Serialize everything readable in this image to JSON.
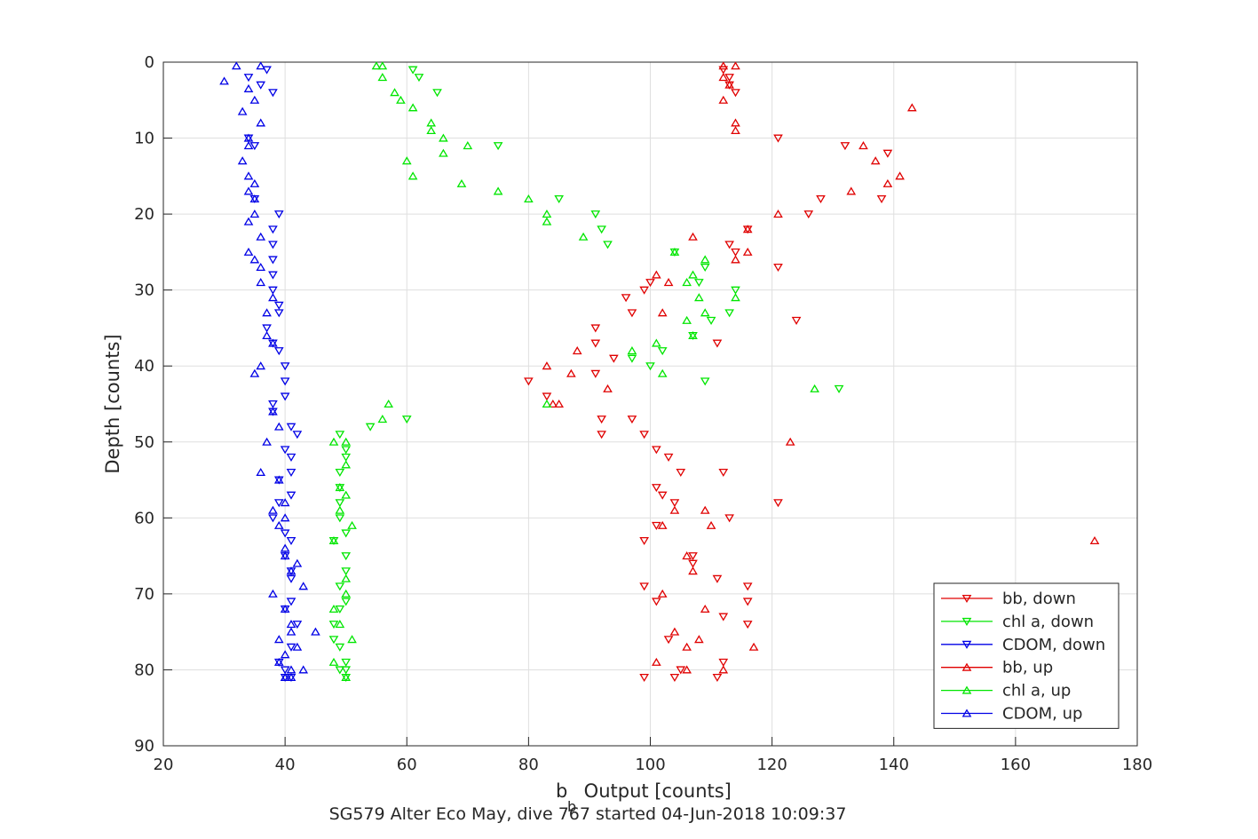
{
  "chart_data": {
    "type": "scatter",
    "xlabel_main": "b",
    "xlabel_sub": "b",
    "xlabel_rest": " Output [counts]",
    "ylabel": "Depth [counts]",
    "subtitle": "SG579 Alter Eco May, dive 767 started 04-Jun-2018 10:09:37",
    "xlim": [
      20,
      180
    ],
    "ylim": [
      0,
      90
    ],
    "y_reversed": true,
    "grid": true,
    "legend_position": "lower-right",
    "x_ticks": [
      20,
      40,
      60,
      80,
      100,
      120,
      140,
      160,
      180
    ],
    "y_ticks": [
      0,
      10,
      20,
      30,
      40,
      50,
      60,
      70,
      80,
      90
    ],
    "series": [
      {
        "name": "bb, down",
        "color": "#e00000",
        "marker": "triangle-down",
        "points": [
          [
            112,
            1
          ],
          [
            113,
            2
          ],
          [
            113,
            3
          ],
          [
            114,
            4
          ],
          [
            121,
            10
          ],
          [
            132,
            11
          ],
          [
            139,
            12
          ],
          [
            138,
            18
          ],
          [
            126,
            20
          ],
          [
            128,
            18
          ],
          [
            113,
            24
          ],
          [
            116,
            22
          ],
          [
            114,
            25
          ],
          [
            121,
            27
          ],
          [
            100,
            29
          ],
          [
            99,
            30
          ],
          [
            96,
            31
          ],
          [
            97,
            33
          ],
          [
            91,
            35
          ],
          [
            91,
            37
          ],
          [
            94,
            39
          ],
          [
            111,
            37
          ],
          [
            91,
            41
          ],
          [
            80,
            42
          ],
          [
            83,
            44
          ],
          [
            92,
            47
          ],
          [
            92,
            49
          ],
          [
            97,
            47
          ],
          [
            99,
            49
          ],
          [
            101,
            51
          ],
          [
            103,
            52
          ],
          [
            105,
            54
          ],
          [
            112,
            54
          ],
          [
            101,
            56
          ],
          [
            102,
            57
          ],
          [
            104,
            58
          ],
          [
            113,
            60
          ],
          [
            121,
            58
          ],
          [
            99,
            63
          ],
          [
            101,
            61
          ],
          [
            107,
            65
          ],
          [
            107,
            66
          ],
          [
            111,
            68
          ],
          [
            116,
            69
          ],
          [
            99,
            69
          ],
          [
            101,
            71
          ],
          [
            116,
            71
          ],
          [
            112,
            73
          ],
          [
            103,
            76
          ],
          [
            116,
            74
          ],
          [
            112,
            79
          ],
          [
            105,
            80
          ],
          [
            104,
            81
          ],
          [
            99,
            81
          ],
          [
            111,
            81
          ],
          [
            124,
            34
          ]
        ]
      },
      {
        "name": "chl a, down",
        "color": "#00e600",
        "marker": "triangle-down",
        "points": [
          [
            61,
            1
          ],
          [
            62,
            2
          ],
          [
            65,
            4
          ],
          [
            75,
            11
          ],
          [
            85,
            18
          ],
          [
            91,
            20
          ],
          [
            92,
            22
          ],
          [
            93,
            24
          ],
          [
            104,
            25
          ],
          [
            109,
            27
          ],
          [
            108,
            29
          ],
          [
            114,
            30
          ],
          [
            113,
            33
          ],
          [
            110,
            34
          ],
          [
            107,
            36
          ],
          [
            102,
            38
          ],
          [
            97,
            39
          ],
          [
            100,
            40
          ],
          [
            109,
            42
          ],
          [
            131,
            43
          ],
          [
            54,
            48
          ],
          [
            60,
            47
          ],
          [
            49,
            49
          ],
          [
            50,
            51
          ],
          [
            50,
            52
          ],
          [
            49,
            54
          ],
          [
            49,
            56
          ],
          [
            49,
            58
          ],
          [
            49,
            60
          ],
          [
            50,
            62
          ],
          [
            48,
            63
          ],
          [
            50,
            65
          ],
          [
            50,
            67
          ],
          [
            49,
            69
          ],
          [
            50,
            71
          ],
          [
            49,
            72
          ],
          [
            48,
            74
          ],
          [
            48,
            76
          ],
          [
            49,
            77
          ],
          [
            50,
            79
          ],
          [
            50,
            80
          ],
          [
            49,
            80
          ],
          [
            50,
            81
          ]
        ]
      },
      {
        "name": "CDOM, down",
        "color": "#0000e6",
        "marker": "triangle-down",
        "points": [
          [
            37,
            1
          ],
          [
            34,
            2
          ],
          [
            36,
            3
          ],
          [
            38,
            4
          ],
          [
            34,
            10
          ],
          [
            35,
            11
          ],
          [
            35,
            18
          ],
          [
            39,
            20
          ],
          [
            38,
            22
          ],
          [
            38,
            24
          ],
          [
            38,
            26
          ],
          [
            38,
            28
          ],
          [
            38,
            30
          ],
          [
            39,
            32
          ],
          [
            39,
            33
          ],
          [
            37,
            35
          ],
          [
            38,
            37
          ],
          [
            39,
            38
          ],
          [
            40,
            40
          ],
          [
            40,
            42
          ],
          [
            40,
            44
          ],
          [
            38,
            45
          ],
          [
            38,
            46
          ],
          [
            41,
            48
          ],
          [
            42,
            49
          ],
          [
            40,
            51
          ],
          [
            41,
            52
          ],
          [
            41,
            54
          ],
          [
            39,
            55
          ],
          [
            41,
            57
          ],
          [
            39,
            58
          ],
          [
            38,
            60
          ],
          [
            40,
            62
          ],
          [
            41,
            63
          ],
          [
            40,
            65
          ],
          [
            41,
            67
          ],
          [
            41,
            68
          ],
          [
            41,
            71
          ],
          [
            40,
            72
          ],
          [
            42,
            74
          ],
          [
            41,
            77
          ],
          [
            39,
            79
          ],
          [
            40,
            80
          ],
          [
            41,
            81
          ],
          [
            40,
            81
          ]
        ]
      },
      {
        "name": "bb, up",
        "color": "#e00000",
        "marker": "triangle-up",
        "points": [
          [
            112,
            0.5
          ],
          [
            114,
            0.5
          ],
          [
            112,
            2
          ],
          [
            113,
            3
          ],
          [
            112,
            5
          ],
          [
            114,
            8
          ],
          [
            114,
            9
          ],
          [
            143,
            6
          ],
          [
            135,
            11
          ],
          [
            137,
            13
          ],
          [
            141,
            15
          ],
          [
            139,
            16
          ],
          [
            133,
            17
          ],
          [
            121,
            20
          ],
          [
            116,
            22
          ],
          [
            107,
            23
          ],
          [
            116,
            25
          ],
          [
            114,
            26
          ],
          [
            101,
            28
          ],
          [
            103,
            29
          ],
          [
            102,
            33
          ],
          [
            88,
            38
          ],
          [
            83,
            40
          ],
          [
            87,
            41
          ],
          [
            93,
            43
          ],
          [
            85,
            45
          ],
          [
            84,
            45
          ],
          [
            123,
            50
          ],
          [
            104,
            59
          ],
          [
            109,
            59
          ],
          [
            110,
            61
          ],
          [
            102,
            61
          ],
          [
            106,
            65
          ],
          [
            107,
            67
          ],
          [
            173,
            63
          ],
          [
            102,
            70
          ],
          [
            109,
            72
          ],
          [
            106,
            77
          ],
          [
            108,
            76
          ],
          [
            117,
            77
          ],
          [
            101,
            79
          ],
          [
            112,
            80
          ],
          [
            106,
            80
          ],
          [
            104,
            75
          ]
        ]
      },
      {
        "name": "chl a, up",
        "color": "#00e600",
        "marker": "triangle-up",
        "points": [
          [
            56,
            0.5
          ],
          [
            55,
            0.5
          ],
          [
            56,
            2
          ],
          [
            58,
            4
          ],
          [
            59,
            5
          ],
          [
            61,
            6
          ],
          [
            64,
            8
          ],
          [
            64,
            9
          ],
          [
            66,
            10
          ],
          [
            70,
            11
          ],
          [
            60,
            13
          ],
          [
            61,
            15
          ],
          [
            66,
            12
          ],
          [
            69,
            16
          ],
          [
            75,
            17
          ],
          [
            80,
            18
          ],
          [
            83,
            20
          ],
          [
            83,
            21
          ],
          [
            89,
            23
          ],
          [
            104,
            25
          ],
          [
            109,
            26
          ],
          [
            107,
            28
          ],
          [
            106,
            29
          ],
          [
            108,
            31
          ],
          [
            114,
            31
          ],
          [
            109,
            33
          ],
          [
            106,
            34
          ],
          [
            107,
            36
          ],
          [
            101,
            37
          ],
          [
            97,
            38
          ],
          [
            102,
            41
          ],
          [
            127,
            43
          ],
          [
            57,
            45
          ],
          [
            56,
            47
          ],
          [
            83,
            45
          ],
          [
            48,
            50
          ],
          [
            50,
            50
          ],
          [
            51,
            61
          ],
          [
            49,
            59
          ],
          [
            50,
            57
          ],
          [
            49,
            56
          ],
          [
            50,
            53
          ],
          [
            48,
            63
          ],
          [
            50,
            68
          ],
          [
            50,
            70
          ],
          [
            48,
            72
          ],
          [
            49,
            74
          ],
          [
            51,
            76
          ],
          [
            48,
            79
          ],
          [
            50,
            81
          ]
        ]
      },
      {
        "name": "CDOM, up",
        "color": "#0000e6",
        "marker": "triangle-up",
        "points": [
          [
            32,
            0.5
          ],
          [
            36,
            0.5
          ],
          [
            30,
            2.5
          ],
          [
            34,
            3.5
          ],
          [
            35,
            5
          ],
          [
            33,
            6.5
          ],
          [
            36,
            8
          ],
          [
            34,
            10
          ],
          [
            34,
            11
          ],
          [
            33,
            13
          ],
          [
            34,
            15
          ],
          [
            35,
            16
          ],
          [
            34,
            17
          ],
          [
            35,
            18
          ],
          [
            35,
            20
          ],
          [
            34,
            21
          ],
          [
            36,
            23
          ],
          [
            34,
            25
          ],
          [
            35,
            26
          ],
          [
            36,
            27
          ],
          [
            36,
            29
          ],
          [
            38,
            31
          ],
          [
            37,
            33
          ],
          [
            37,
            36
          ],
          [
            38,
            37
          ],
          [
            36,
            40
          ],
          [
            35,
            41
          ],
          [
            38,
            46
          ],
          [
            39,
            48
          ],
          [
            37,
            50
          ],
          [
            36,
            54
          ],
          [
            39,
            55
          ],
          [
            40,
            58
          ],
          [
            38,
            59
          ],
          [
            39,
            61
          ],
          [
            40,
            64
          ],
          [
            40,
            65
          ],
          [
            42,
            66
          ],
          [
            41,
            67
          ],
          [
            43,
            69
          ],
          [
            38,
            70
          ],
          [
            40,
            72
          ],
          [
            41,
            74
          ],
          [
            45,
            75
          ],
          [
            39,
            76
          ],
          [
            39,
            79
          ],
          [
            43,
            80
          ],
          [
            41,
            80
          ],
          [
            40,
            81
          ],
          [
            42,
            77
          ],
          [
            40,
            81
          ],
          [
            41,
            81
          ],
          [
            41,
            75
          ],
          [
            40,
            78
          ],
          [
            40,
            60
          ]
        ]
      }
    ]
  }
}
